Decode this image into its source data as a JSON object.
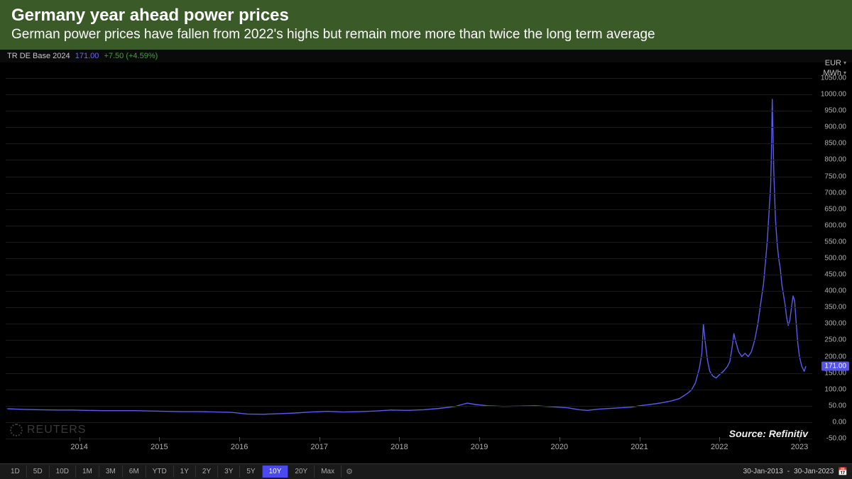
{
  "header": {
    "title": "Germany year ahead power prices",
    "subtitle": "German power prices have fallen from 2022's highs but remain more more than twice the long term average",
    "bg_color": "#3a5a28",
    "title_fontsize": 24,
    "subtitle_fontsize": 19
  },
  "ticker": {
    "symbol": "TR DE Base 2024",
    "price": "171.00",
    "change": "+7.50 (+4.59%)",
    "symbol_color": "#c8c8c8",
    "price_color": "#6a6af0",
    "change_color": "#3aa53a"
  },
  "units": {
    "currency": "EUR",
    "measure": "MWh"
  },
  "chart": {
    "type": "line",
    "line_color": "#5a5af0",
    "line_width": 1.4,
    "background_color": "#000000",
    "grid_color": "#1a1a1a",
    "ylim": [
      -50,
      1050
    ],
    "ytick_step": 50,
    "yticks": [
      "1050.00",
      "1000.00",
      "950.00",
      "900.00",
      "850.00",
      "800.00",
      "750.00",
      "700.00",
      "650.00",
      "600.00",
      "550.00",
      "500.00",
      "450.00",
      "400.00",
      "350.00",
      "300.00",
      "250.00",
      "200.00",
      "150.00",
      "100.00",
      "50.00",
      "0.00",
      "-50.00"
    ],
    "current_value_label": "171.00",
    "current_value_color": "#5454ec",
    "x_years": [
      "2014",
      "2015",
      "2016",
      "2017",
      "2018",
      "2019",
      "2020",
      "2021",
      "2022",
      "2023"
    ],
    "x_range": {
      "start": 2013.08,
      "end": 2023.16
    },
    "series": [
      [
        2013.1,
        41
      ],
      [
        2013.3,
        39
      ],
      [
        2013.5,
        38
      ],
      [
        2013.7,
        37
      ],
      [
        2013.9,
        37
      ],
      [
        2014.1,
        36
      ],
      [
        2014.3,
        35
      ],
      [
        2014.5,
        35
      ],
      [
        2014.7,
        35
      ],
      [
        2014.9,
        34
      ],
      [
        2015.1,
        33
      ],
      [
        2015.3,
        32
      ],
      [
        2015.5,
        32
      ],
      [
        2015.7,
        31
      ],
      [
        2015.9,
        30
      ],
      [
        2016.1,
        25
      ],
      [
        2016.3,
        24
      ],
      [
        2016.5,
        26
      ],
      [
        2016.7,
        28
      ],
      [
        2016.9,
        31
      ],
      [
        2017.1,
        33
      ],
      [
        2017.3,
        31
      ],
      [
        2017.5,
        32
      ],
      [
        2017.7,
        34
      ],
      [
        2017.9,
        37
      ],
      [
        2018.1,
        36
      ],
      [
        2018.3,
        38
      ],
      [
        2018.5,
        42
      ],
      [
        2018.7,
        48
      ],
      [
        2018.8,
        55
      ],
      [
        2018.85,
        58
      ],
      [
        2018.95,
        54
      ],
      [
        2019.1,
        50
      ],
      [
        2019.3,
        48
      ],
      [
        2019.5,
        49
      ],
      [
        2019.7,
        50
      ],
      [
        2019.9,
        47
      ],
      [
        2020.1,
        44
      ],
      [
        2020.25,
        38
      ],
      [
        2020.35,
        36
      ],
      [
        2020.5,
        40
      ],
      [
        2020.7,
        43
      ],
      [
        2020.9,
        46
      ],
      [
        2021.0,
        50
      ],
      [
        2021.1,
        53
      ],
      [
        2021.2,
        56
      ],
      [
        2021.3,
        60
      ],
      [
        2021.4,
        65
      ],
      [
        2021.5,
        72
      ],
      [
        2021.55,
        80
      ],
      [
        2021.6,
        88
      ],
      [
        2021.65,
        98
      ],
      [
        2021.7,
        120
      ],
      [
        2021.75,
        165
      ],
      [
        2021.78,
        210
      ],
      [
        2021.8,
        300
      ],
      [
        2021.82,
        250
      ],
      [
        2021.85,
        190
      ],
      [
        2021.88,
        155
      ],
      [
        2021.92,
        140
      ],
      [
        2021.96,
        135
      ],
      [
        2022.0,
        145
      ],
      [
        2022.05,
        155
      ],
      [
        2022.1,
        170
      ],
      [
        2022.13,
        185
      ],
      [
        2022.16,
        230
      ],
      [
        2022.18,
        270
      ],
      [
        2022.2,
        250
      ],
      [
        2022.24,
        215
      ],
      [
        2022.28,
        200
      ],
      [
        2022.32,
        210
      ],
      [
        2022.36,
        200
      ],
      [
        2022.4,
        215
      ],
      [
        2022.44,
        250
      ],
      [
        2022.48,
        300
      ],
      [
        2022.52,
        370
      ],
      [
        2022.55,
        420
      ],
      [
        2022.58,
        500
      ],
      [
        2022.6,
        560
      ],
      [
        2022.62,
        640
      ],
      [
        2022.64,
        720
      ],
      [
        2022.65,
        820
      ],
      [
        2022.66,
        985
      ],
      [
        2022.67,
        870
      ],
      [
        2022.68,
        760
      ],
      [
        2022.7,
        620
      ],
      [
        2022.72,
        550
      ],
      [
        2022.74,
        500
      ],
      [
        2022.76,
        470
      ],
      [
        2022.78,
        420
      ],
      [
        2022.8,
        390
      ],
      [
        2022.82,
        360
      ],
      [
        2022.84,
        320
      ],
      [
        2022.86,
        295
      ],
      [
        2022.88,
        310
      ],
      [
        2022.9,
        350
      ],
      [
        2022.92,
        385
      ],
      [
        2022.94,
        370
      ],
      [
        2022.96,
        300
      ],
      [
        2022.98,
        240
      ],
      [
        2023.0,
        200
      ],
      [
        2023.03,
        170
      ],
      [
        2023.06,
        155
      ],
      [
        2023.08,
        171
      ]
    ],
    "label_fontsize": 10,
    "label_color": "#b0b0b0"
  },
  "watermark": "REUTERS",
  "source": "Source: Refinitiv",
  "range_buttons": [
    "1D",
    "5D",
    "10D",
    "1M",
    "3M",
    "6M",
    "YTD",
    "1Y",
    "2Y",
    "3Y",
    "5Y",
    "10Y",
    "20Y",
    "Max"
  ],
  "range_active": "10Y",
  "date_range": {
    "from": "30-Jan-2013",
    "to": "30-Jan-2023",
    "sep": "-"
  }
}
